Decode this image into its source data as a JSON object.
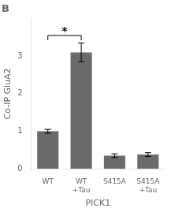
{
  "chart_data": {
    "type": "bar",
    "title": "B",
    "categories": [
      "WT",
      "WT\n+Tau",
      "S415A",
      "S415A\n+Tau"
    ],
    "values": [
      1.0,
      3.1,
      0.35,
      0.38
    ],
    "errors": [
      0.05,
      0.25,
      0.05,
      0.05
    ],
    "color": "#6b6b6b",
    "x_label": "PICK1",
    "y_label": "Co-IP GluA2",
    "ylim": [
      0,
      4.0
    ],
    "yticks": [
      0,
      1,
      2,
      3
    ],
    "grid": false,
    "annotations": [
      {
        "from": "WT",
        "to": "WT\n+Tau",
        "y": 3.55,
        "text": "*"
      }
    ]
  }
}
